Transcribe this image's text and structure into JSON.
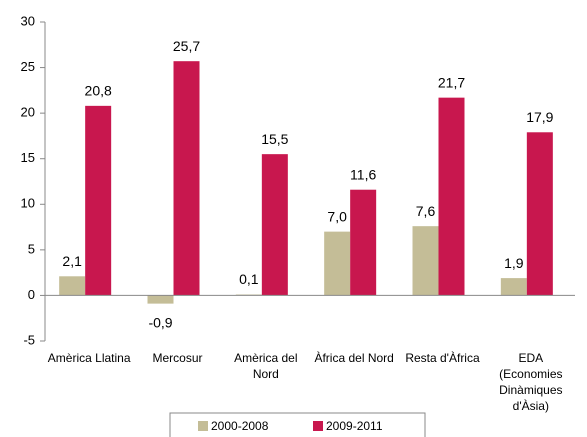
{
  "chart_data": {
    "type": "bar",
    "categories": [
      "Amèrica Llatina",
      "Mercosur",
      "Amèrica del Nord",
      "Àfrica del Nord",
      "Resta d'Àfrica",
      "EDA (Economies Dinàmiques d'Àsia)"
    ],
    "series": [
      {
        "name": "2000-2008",
        "color": "#c4bd97",
        "values": [
          2.1,
          -0.9,
          0.1,
          7.0,
          7.6,
          1.9
        ],
        "value_labels": [
          "2,1",
          "-0,9",
          "0,1",
          "7,0",
          "7,6",
          "1,9"
        ]
      },
      {
        "name": "2009-2011",
        "color": "#c8174e",
        "values": [
          20.8,
          25.7,
          15.5,
          11.6,
          21.7,
          17.9
        ],
        "value_labels": [
          "20,8",
          "25,7",
          "15,5",
          "11,6",
          "21,7",
          "17,9"
        ]
      }
    ],
    "ylim": [
      -5,
      30
    ],
    "yticks": [
      -5,
      0,
      5,
      10,
      15,
      20,
      25,
      30
    ],
    "grid": false,
    "legend": "bottom"
  }
}
